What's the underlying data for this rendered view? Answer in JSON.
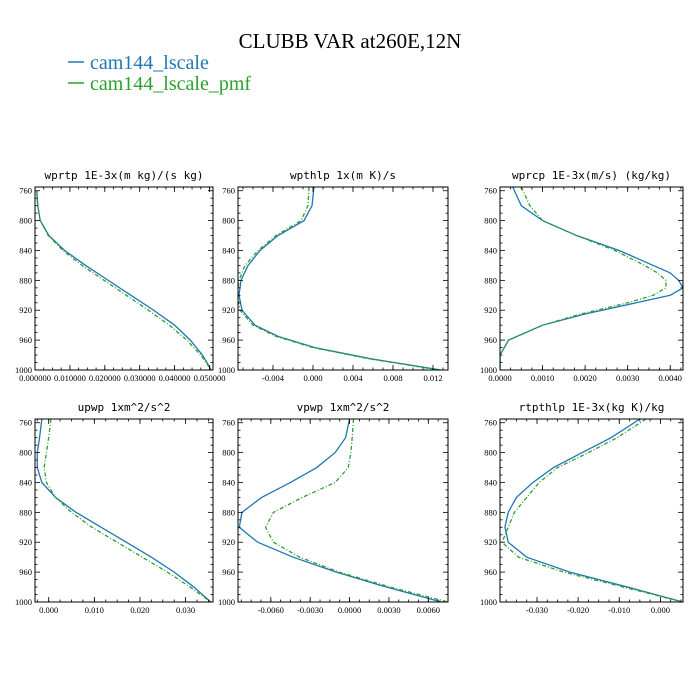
{
  "figure": {
    "title": "CLUBB VAR at260E,12N"
  },
  "legend": [
    {
      "name": "cam144_lscale",
      "color": "#1f77b4",
      "dash": "solid"
    },
    {
      "name": "cam144_lscale_pmf",
      "color": "#2ca02c",
      "dash": "dashed"
    }
  ],
  "chart_data": [
    {
      "type": "line",
      "title": "wprtp  1E-3x(m kg)/(s kg)",
      "xlim": [
        0.0,
        0.051
      ],
      "ylim": [
        1000,
        755
      ],
      "xticks": [
        0.0,
        0.01,
        0.02,
        0.03,
        0.04,
        0.05
      ],
      "xtick_labels": [
        "0.000000",
        "0.010000",
        "0.020000",
        "0.030000",
        "0.040000",
        "0.050000"
      ],
      "yticks": [
        760,
        800,
        840,
        880,
        920,
        960,
        1000
      ],
      "ytick_labels": [
        "760",
        "800",
        "840",
        "880",
        "920",
        "960",
        "1000"
      ],
      "series": [
        {
          "name": "cam144_lscale",
          "y": [
            760,
            780,
            800,
            820,
            840,
            860,
            880,
            900,
            920,
            940,
            960,
            980,
            1000
          ],
          "x": [
            0.0005,
            0.0008,
            0.0015,
            0.004,
            0.0085,
            0.0145,
            0.021,
            0.0275,
            0.034,
            0.04,
            0.0445,
            0.048,
            0.0505
          ]
        },
        {
          "name": "cam144_lscale_pmf",
          "y": [
            760,
            780,
            800,
            820,
            840,
            860,
            880,
            900,
            920,
            940,
            960,
            980,
            1000
          ],
          "x": [
            0.0005,
            0.0008,
            0.0015,
            0.0038,
            0.008,
            0.0135,
            0.0198,
            0.0262,
            0.0325,
            0.0385,
            0.0435,
            0.0475,
            0.0505
          ]
        }
      ]
    },
    {
      "type": "line",
      "title": "wpthlp  1x(m K)/s",
      "xlim": [
        -0.0075,
        0.0135
      ],
      "ylim": [
        1000,
        755
      ],
      "xticks": [
        -0.004,
        0.0,
        0.004,
        0.008,
        0.012
      ],
      "xtick_labels": [
        "-0.004",
        "0.000",
        "0.004",
        "0.008",
        "0.012"
      ],
      "yticks": [
        760,
        800,
        840,
        880,
        920,
        960,
        1000
      ],
      "ytick_labels": [
        "760",
        "800",
        "840",
        "880",
        "920",
        "960",
        "1000"
      ],
      "series": [
        {
          "name": "cam144_lscale",
          "y": [
            755,
            780,
            800,
            820,
            840,
            860,
            880,
            900,
            920,
            940,
            955,
            970,
            985,
            1000
          ],
          "x": [
            0.0001,
            -0.0001,
            -0.0009,
            -0.0035,
            -0.0053,
            -0.0065,
            -0.0072,
            -0.0074,
            -0.0071,
            -0.0058,
            -0.0035,
            0.0002,
            0.0058,
            0.0128
          ]
        },
        {
          "name": "cam144_lscale_pmf",
          "y": [
            755,
            780,
            800,
            820,
            840,
            860,
            880,
            900,
            920,
            940,
            955,
            970,
            985,
            1000
          ],
          "x": [
            -0.0004,
            -0.0005,
            -0.0012,
            -0.0037,
            -0.0055,
            -0.0068,
            -0.0074,
            -0.0076,
            -0.0073,
            -0.006,
            -0.0037,
            0.0,
            0.0056,
            0.0126
          ]
        }
      ]
    },
    {
      "type": "line",
      "title": "wprcp  1E-3x(m/s) (kg/kg)",
      "xlim": [
        0.0,
        0.0043
      ],
      "ylim": [
        1000,
        755
      ],
      "xticks": [
        0.0,
        0.001,
        0.002,
        0.003,
        0.004
      ],
      "xtick_labels": [
        "0.0000",
        "0.0010",
        "0.0020",
        "0.0030",
        "0.0040"
      ],
      "yticks": [
        760,
        800,
        840,
        880,
        920,
        960,
        1000
      ],
      "ytick_labels": [
        "760",
        "800",
        "840",
        "880",
        "920",
        "960",
        "1000"
      ],
      "series": [
        {
          "name": "cam144_lscale",
          "y": [
            755,
            780,
            800,
            820,
            840,
            860,
            870,
            880,
            890,
            900,
            910,
            925,
            940,
            960,
            980,
            1000
          ],
          "x": [
            0.0003,
            0.0005,
            0.001,
            0.0018,
            0.0028,
            0.0036,
            0.004,
            0.0042,
            0.0043,
            0.004,
            0.0032,
            0.002,
            0.001,
            0.0002,
            0.0,
            0.0
          ]
        },
        {
          "name": "cam144_lscale_pmf",
          "y": [
            755,
            780,
            800,
            820,
            840,
            860,
            870,
            880,
            890,
            900,
            910,
            925,
            940,
            960,
            980,
            1000
          ],
          "x": [
            0.0005,
            0.0007,
            0.001,
            0.0018,
            0.0027,
            0.0034,
            0.0037,
            0.0039,
            0.0039,
            0.0036,
            0.003,
            0.0019,
            0.001,
            0.0002,
            0.0,
            0.0
          ]
        }
      ]
    },
    {
      "type": "line",
      "title": "upwp  1xm^2/s^2",
      "xlim": [
        -0.003,
        0.036
      ],
      "ylim": [
        1000,
        755
      ],
      "xticks": [
        0.0,
        0.01,
        0.02,
        0.03
      ],
      "xtick_labels": [
        "0.000",
        "0.010",
        "0.020",
        "0.030"
      ],
      "yticks": [
        760,
        800,
        840,
        880,
        920,
        960,
        1000
      ],
      "ytick_labels": [
        "760",
        "800",
        "840",
        "880",
        "920",
        "960",
        "1000"
      ],
      "series": [
        {
          "name": "cam144_lscale",
          "y": [
            755,
            780,
            800,
            820,
            840,
            860,
            880,
            900,
            920,
            940,
            960,
            980,
            1000
          ],
          "x": [
            -0.0015,
            -0.002,
            -0.0025,
            -0.0025,
            -0.0015,
            0.0015,
            0.006,
            0.0115,
            0.017,
            0.0225,
            0.0275,
            0.0318,
            0.0355
          ]
        },
        {
          "name": "cam144_lscale_pmf",
          "y": [
            755,
            780,
            800,
            820,
            840,
            860,
            880,
            900,
            920,
            940,
            960,
            980,
            1000
          ],
          "x": [
            0.0005,
            0.0,
            -0.0005,
            -0.001,
            -0.0005,
            0.0015,
            0.005,
            0.0095,
            0.015,
            0.0205,
            0.026,
            0.031,
            0.0355
          ]
        }
      ]
    },
    {
      "type": "line",
      "title": "vpwp  1xm^2/s^2",
      "xlim": [
        -0.0085,
        0.0075
      ],
      "ylim": [
        1000,
        755
      ],
      "xticks": [
        -0.006,
        -0.003,
        0.0,
        0.003,
        0.006
      ],
      "xtick_labels": [
        "-0.0060",
        "-0.0030",
        "0.0000",
        "0.0030",
        "0.0060"
      ],
      "yticks": [
        760,
        800,
        840,
        880,
        920,
        960,
        1000
      ],
      "ytick_labels": [
        "760",
        "800",
        "840",
        "880",
        "920",
        "960",
        "1000"
      ],
      "series": [
        {
          "name": "cam144_lscale",
          "y": [
            755,
            780,
            800,
            820,
            840,
            860,
            880,
            900,
            920,
            940,
            960,
            980,
            1000
          ],
          "x": [
            0.0,
            -0.0003,
            -0.0011,
            -0.0025,
            -0.0045,
            -0.0067,
            -0.0082,
            -0.0084,
            -0.007,
            -0.0043,
            -0.001,
            0.0028,
            0.007
          ]
        },
        {
          "name": "cam144_lscale_pmf",
          "y": [
            755,
            780,
            800,
            820,
            840,
            860,
            880,
            900,
            920,
            940,
            960,
            980,
            1000
          ],
          "x": [
            0.0003,
            0.0002,
            0.0001,
            -0.0001,
            -0.0011,
            -0.0036,
            -0.0058,
            -0.0064,
            -0.0058,
            -0.0038,
            -0.0008,
            0.0031,
            0.0075
          ]
        }
      ]
    },
    {
      "type": "line",
      "title": "rtpthlp  1E-3x(kg K)/kg",
      "xlim": [
        -0.039,
        0.0055
      ],
      "ylim": [
        1000,
        755
      ],
      "xticks": [
        -0.03,
        -0.02,
        -0.01,
        0.0
      ],
      "xtick_labels": [
        "-0.030",
        "-0.020",
        "-0.010",
        "0.000"
      ],
      "yticks": [
        760,
        800,
        840,
        880,
        920,
        960,
        1000
      ],
      "ytick_labels": [
        "760",
        "800",
        "840",
        "880",
        "920",
        "960",
        "1000"
      ],
      "series": [
        {
          "name": "cam144_lscale",
          "y": [
            755,
            780,
            800,
            820,
            840,
            860,
            880,
            900,
            920,
            940,
            960,
            980,
            1000
          ],
          "x": [
            -0.005,
            -0.012,
            -0.019,
            -0.026,
            -0.031,
            -0.035,
            -0.037,
            -0.0378,
            -0.037,
            -0.0325,
            -0.022,
            -0.008,
            0.0055
          ]
        },
        {
          "name": "cam144_lscale_pmf",
          "y": [
            755,
            780,
            800,
            820,
            840,
            860,
            880,
            900,
            920,
            940,
            960,
            980,
            1000
          ],
          "x": [
            -0.0035,
            -0.0105,
            -0.0175,
            -0.025,
            -0.0295,
            -0.0325,
            -0.0355,
            -0.037,
            -0.0385,
            -0.0345,
            -0.0235,
            -0.009,
            0.0055
          ]
        }
      ]
    }
  ]
}
